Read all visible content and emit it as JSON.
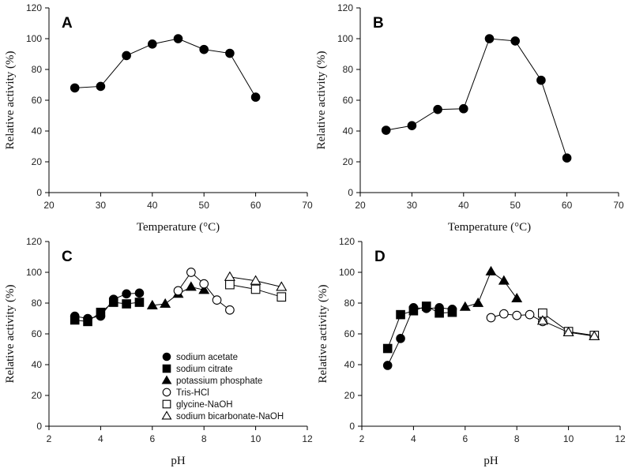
{
  "chart_data": [
    {
      "type": "line",
      "panel_label": "A",
      "xlabel": "Temperature (°C)",
      "ylabel": "Relative activity (%)",
      "xlim": [
        20,
        70
      ],
      "ylim": [
        0,
        120
      ],
      "xticks": [
        20,
        30,
        40,
        50,
        60,
        70
      ],
      "yticks": [
        0,
        20,
        40,
        60,
        80,
        100,
        120
      ],
      "series": [
        {
          "marker": "circle",
          "fill": "#000000",
          "x": [
            25,
            30,
            35,
            40,
            45,
            50,
            55,
            60
          ],
          "y": [
            68,
            69,
            89,
            96.5,
            100,
            93,
            90.5,
            62
          ]
        }
      ]
    },
    {
      "type": "line",
      "panel_label": "B",
      "xlabel": "Temperature (°C)",
      "ylabel": "Relative activity (%)",
      "xlim": [
        20,
        70
      ],
      "ylim": [
        0,
        120
      ],
      "xticks": [
        20,
        30,
        40,
        50,
        60,
        70
      ],
      "yticks": [
        0,
        20,
        40,
        60,
        80,
        100,
        120
      ],
      "series": [
        {
          "marker": "circle",
          "fill": "#000000",
          "x": [
            25,
            30,
            35,
            40,
            45,
            50,
            55,
            60
          ],
          "y": [
            40.5,
            43.5,
            54,
            54.5,
            100,
            98.5,
            73,
            22.5
          ]
        }
      ]
    },
    {
      "type": "line",
      "panel_label": "C",
      "xlabel": "pH",
      "ylabel": "Relative activity (%)",
      "xlim": [
        2,
        12
      ],
      "ylim": [
        0,
        120
      ],
      "xticks": [
        2,
        4,
        6,
        8,
        10,
        12
      ],
      "yticks": [
        0,
        20,
        40,
        60,
        80,
        100,
        120
      ],
      "legend_position": "bottom-left",
      "series": [
        {
          "name": "sodium acetate",
          "marker": "circle",
          "fill": "#000000",
          "x": [
            3,
            3.5,
            4,
            4.5,
            5,
            5.5
          ],
          "y": [
            71.5,
            70,
            71.5,
            82.5,
            86,
            86.5
          ]
        },
        {
          "name": "sodium citrate",
          "marker": "square",
          "fill": "#000000",
          "x": [
            3,
            3.5,
            4,
            4.5,
            5,
            5.5
          ],
          "y": [
            69,
            68,
            74,
            80.5,
            79.5,
            80.5
          ]
        },
        {
          "name": "potassium phosphate",
          "marker": "triangle",
          "fill": "#000000",
          "x": [
            6,
            6.5,
            7,
            7.5,
            8
          ],
          "y": [
            78.5,
            79.5,
            86,
            90.5,
            88.5
          ]
        },
        {
          "name": "Tris-HCl",
          "marker": "circle",
          "fill": "#ffffff",
          "x": [
            7,
            7.5,
            8,
            8.5,
            9
          ],
          "y": [
            88,
            100,
            92.5,
            82,
            75.5
          ]
        },
        {
          "name": "glycine-NaOH",
          "marker": "square",
          "fill": "#ffffff",
          "x": [
            9,
            10,
            11
          ],
          "y": [
            92,
            89,
            84
          ]
        },
        {
          "name": "sodium bicarbonate-NaOH",
          "marker": "triangle",
          "fill": "#ffffff",
          "x": [
            9,
            10,
            11
          ],
          "y": [
            97,
            94.5,
            90.5
          ]
        }
      ]
    },
    {
      "type": "line",
      "panel_label": "D",
      "xlabel": "pH",
      "ylabel": "Relative activity (%)",
      "xlim": [
        2,
        12
      ],
      "ylim": [
        0,
        120
      ],
      "xticks": [
        2,
        4,
        6,
        8,
        10,
        12
      ],
      "yticks": [
        0,
        20,
        40,
        60,
        80,
        100,
        120
      ],
      "series": [
        {
          "marker": "circle",
          "fill": "#000000",
          "x": [
            3,
            3.5,
            4,
            4.5,
            5,
            5.5
          ],
          "y": [
            39.5,
            57,
            77,
            76.5,
            77,
            76
          ]
        },
        {
          "marker": "square",
          "fill": "#000000",
          "x": [
            3,
            3.5,
            4,
            4.5,
            5,
            5.5
          ],
          "y": [
            50.5,
            72.5,
            75,
            78,
            73.5,
            74
          ]
        },
        {
          "marker": "triangle",
          "fill": "#000000",
          "x": [
            6,
            6.5,
            7,
            7.5,
            8
          ],
          "y": [
            77.5,
            80,
            100.5,
            94.5,
            83
          ]
        },
        {
          "marker": "circle",
          "fill": "#ffffff",
          "x": [
            7,
            7.5,
            8,
            8.5,
            9
          ],
          "y": [
            70.5,
            73,
            72,
            72.5,
            68
          ]
        },
        {
          "marker": "square",
          "fill": "#ffffff",
          "x": [
            9,
            10,
            11
          ],
          "y": [
            73.5,
            61.5,
            59
          ]
        },
        {
          "marker": "triangle",
          "fill": "#ffffff",
          "x": [
            9,
            10,
            11
          ],
          "y": [
            68.5,
            61,
            58.5
          ]
        }
      ]
    }
  ]
}
